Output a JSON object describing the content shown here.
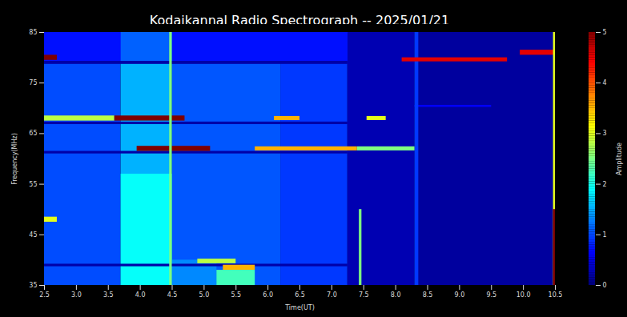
{
  "chart_data": {
    "type": "heatmap",
    "title": "Kodaikannal Radio Spectrograph -- 2025/01/21",
    "x_label": "Time(UT)",
    "y_label": "Frequency(MHz)",
    "xlim": [
      2.5,
      10.5
    ],
    "xticks": [
      2.5,
      {
        "value": 3,
        "label": "3.0"
      },
      3.5,
      {
        "value": 4,
        "label": "4.0"
      },
      4.5,
      {
        "value": 5,
        "label": "5.0"
      },
      5.5,
      {
        "value": 6,
        "label": "6.0"
      },
      6.5,
      {
        "value": 7,
        "label": "7.0"
      },
      7.5,
      {
        "value": 8,
        "label": "8.0"
      },
      8.5,
      {
        "value": 9,
        "label": "9.0"
      },
      9.5,
      {
        "value": 10,
        "label": "10.0"
      },
      10.5
    ],
    "ylim": [
      35,
      85
    ],
    "yticks": [
      35,
      45,
      55,
      65,
      75,
      85
    ],
    "cells": [
      {
        "x0": 2.5,
        "x1": 3.7,
        "y0": 35,
        "y1": 85,
        "value": 1.0
      },
      {
        "x0": 3.7,
        "x1": 4.5,
        "y0": 35,
        "y1": 85,
        "value": 1.5
      },
      {
        "x0": 4.5,
        "x1": 6.2,
        "y0": 35,
        "y1": 85,
        "value": 1.05
      },
      {
        "x0": 6.2,
        "x1": 7.25,
        "y0": 35,
        "y1": 85,
        "value": 0.9
      },
      {
        "x0": 7.25,
        "x1": 8.3,
        "y0": 35,
        "y1": 85,
        "value": 0.25
      },
      {
        "x0": 8.3,
        "x1": 10.5,
        "y0": 35,
        "y1": 85,
        "value": 0.15
      },
      {
        "x0": 2.5,
        "x1": 7.25,
        "y0": 79,
        "y1": 85,
        "value": 0.7
      },
      {
        "x0": 3.7,
        "x1": 4.5,
        "y0": 79,
        "y1": 85,
        "value": 1.1
      },
      {
        "x0": 3.7,
        "x1": 4.5,
        "y0": 35,
        "y1": 57,
        "value": 1.9
      },
      {
        "x0": 4.5,
        "x1": 5.2,
        "y0": 35,
        "y1": 40,
        "value": 1.3
      },
      {
        "x0": 5.2,
        "x1": 5.8,
        "y0": 35,
        "y1": 38,
        "value": 2.2
      },
      {
        "x0": 2.5,
        "x1": 7.25,
        "y0": 78.7,
        "y1": 79.3,
        "value": 0.2
      },
      {
        "x0": 2.5,
        "x1": 7.25,
        "y0": 66.8,
        "y1": 67.3,
        "value": 0.2
      },
      {
        "x0": 2.5,
        "x1": 7.25,
        "y0": 61,
        "y1": 61.5,
        "value": 0.2
      },
      {
        "x0": 2.5,
        "x1": 7.25,
        "y0": 38.7,
        "y1": 39.2,
        "value": 0.2
      },
      {
        "x0": 8.3,
        "x1": 9.5,
        "y0": 70.2,
        "y1": 70.6,
        "value": 0.6
      },
      {
        "x0": 8.3,
        "x1": 8.36,
        "y0": 35,
        "y1": 85,
        "value": 0.9
      },
      {
        "x0": 2.5,
        "x1": 2.7,
        "y0": 79.5,
        "y1": 80.5,
        "value": 5
      },
      {
        "x0": 8.1,
        "x1": 9.75,
        "y0": 79.2,
        "y1": 80,
        "value": 4.5
      },
      {
        "x0": 9.95,
        "x1": 10.5,
        "y0": 80.5,
        "y1": 81.5,
        "value": 4.5
      },
      {
        "x0": 2.5,
        "x1": 3.6,
        "y0": 67.5,
        "y1": 68.5,
        "value": 2.8
      },
      {
        "x0": 3.6,
        "x1": 4.7,
        "y0": 67.5,
        "y1": 68.5,
        "value": 5
      },
      {
        "x0": 6.1,
        "x1": 6.5,
        "y0": 67.6,
        "y1": 68.4,
        "value": 3.5
      },
      {
        "x0": 7.55,
        "x1": 7.85,
        "y0": 67.6,
        "y1": 68.4,
        "value": 3
      },
      {
        "x0": 3.95,
        "x1": 5.1,
        "y0": 61.5,
        "y1": 62.5,
        "value": 5
      },
      {
        "x0": 5.8,
        "x1": 7.4,
        "y0": 61.6,
        "y1": 62.4,
        "value": 3.5
      },
      {
        "x0": 7.4,
        "x1": 8.3,
        "y0": 61.6,
        "y1": 62.4,
        "value": 2.5
      },
      {
        "x0": 4.9,
        "x1": 5.5,
        "y0": 39.3,
        "y1": 40.2,
        "value": 2.8
      },
      {
        "x0": 5.3,
        "x1": 5.8,
        "y0": 38,
        "y1": 39,
        "value": 3.5
      },
      {
        "x0": 2.5,
        "x1": 2.7,
        "y0": 47.5,
        "y1": 48.5,
        "value": 3
      },
      {
        "x0": 4.46,
        "x1": 4.5,
        "y0": 35,
        "y1": 85,
        "value": 2.5
      },
      {
        "x0": 7.43,
        "x1": 7.47,
        "y0": 35,
        "y1": 50,
        "value": 2.5
      },
      {
        "x0": 10.47,
        "x1": 10.5,
        "y0": 35,
        "y1": 85,
        "value": 3
      },
      {
        "x0": 10.47,
        "x1": 10.5,
        "y0": 35,
        "y1": 50,
        "value": 5
      }
    ],
    "colorbar": {
      "label": "Amplitude",
      "range": [
        0,
        5
      ],
      "ticks": [
        0,
        1,
        2,
        3,
        4,
        5
      ],
      "colors": [
        "#00007f",
        "#0000ff",
        "#007fff",
        "#00ffff",
        "#7fff7f",
        "#ffff00",
        "#ff7f00",
        "#ff0000",
        "#7f0000"
      ]
    }
  }
}
